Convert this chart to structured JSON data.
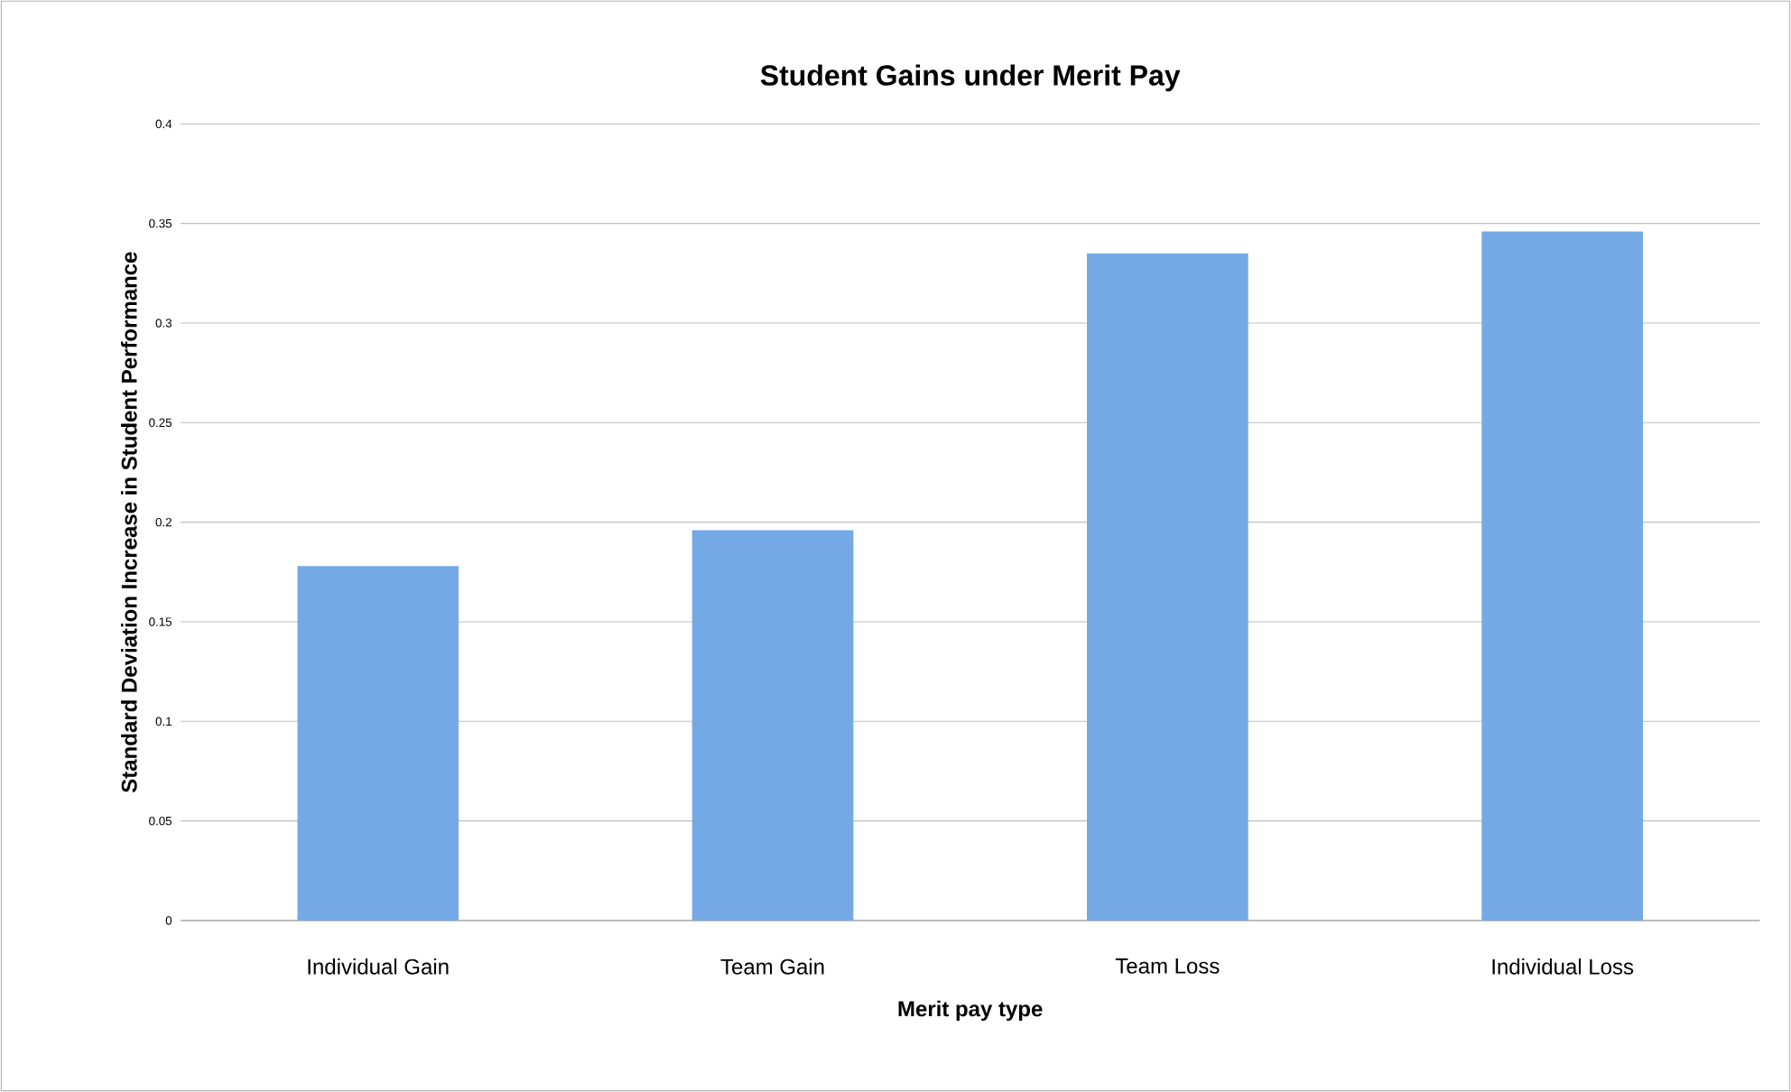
{
  "chart_data": {
    "type": "bar",
    "title": "Student Gains under Merit Pay",
    "xlabel": "Merit pay type",
    "ylabel": "Standard Deviation Increase in Student Performance",
    "categories": [
      "Individual Gain",
      "Team Gain",
      "Team Loss",
      "Individual Loss"
    ],
    "values": [
      0.178,
      0.196,
      0.335,
      0.346
    ],
    "color": "#74a9e6",
    "ylim": [
      0,
      0.4
    ],
    "yticks": [
      0,
      0.05,
      0.1,
      0.15,
      0.2,
      0.25,
      0.3,
      0.35,
      0.4
    ],
    "grid": "y"
  }
}
